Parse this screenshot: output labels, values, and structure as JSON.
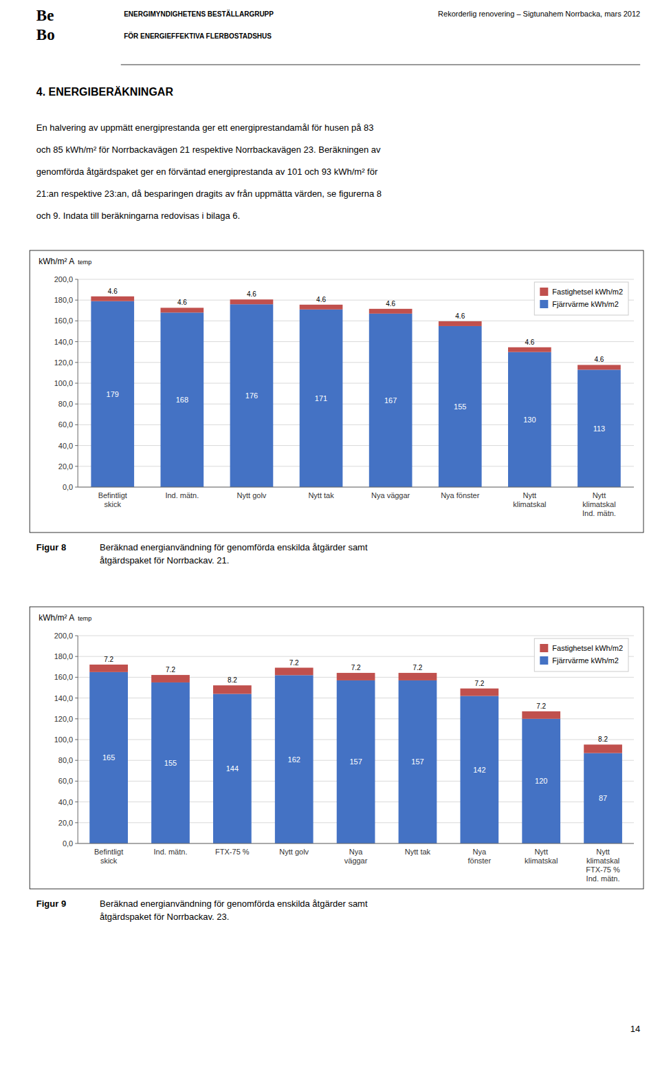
{
  "logo": [
    "Be",
    "Bo"
  ],
  "header_left": [
    "ENERGIMYNDIGHETENS BESTÄLLARGRUPP",
    "FÖR ENERGIEFFEKTIVA FLERBOSTADSHUS"
  ],
  "header_right": "Rekorderlig renovering – Sigtunahem Norrbacka, mars 2012",
  "section_title": "4.   ENERGIBERÄKNINGAR",
  "body_text": [
    "En halvering av uppmätt energiprestanda ger ett energiprestandamål för husen på 83",
    "och 85 kWh/m² för Norrbackavägen 21 respektive Norrbackavägen 23. Beräkningen av",
    "genomförda åtgärdspaket ger en förväntad energiprestanda av 101 och 93 kWh/m² för",
    "21:an respektive 23:an, då besparingen dragits av från uppmätta värden, se figurerna 8",
    "och 9. Indata till beräkningarna redovisas i bilaga 6."
  ],
  "page_number": "14",
  "chart_data": [
    {
      "type": "bar",
      "stacked": true,
      "ylabel": "kWh/m² A",
      "ylabel_note": "temp",
      "categories": [
        "Befintligt\nskick",
        "Ind. mätn.",
        "Nytt golv",
        "Nytt tak",
        "Nya väggar",
        "Nya fönster",
        "Nytt\nklimatskal",
        "Nytt\nklimatskal\nInd. mätn."
      ],
      "series": [
        {
          "name": "Fjärrvärme kWh/m2",
          "color": "#4472C4",
          "values": [
            179,
            168,
            176,
            171,
            167,
            155,
            130,
            113
          ]
        },
        {
          "name": "Fastighetsel kWh/m2",
          "color": "#C0504D",
          "values": [
            4.6,
            4.6,
            4.6,
            4.6,
            4.6,
            4.6,
            4.6,
            4.6
          ]
        }
      ],
      "ylim": [
        0,
        200
      ],
      "yticks": [
        {
          "value": 0,
          "label": "0,0"
        },
        {
          "value": 20,
          "label": "20,0"
        },
        {
          "value": 40,
          "label": "40,0"
        },
        {
          "value": 60,
          "label": "60,0"
        },
        {
          "value": 80,
          "label": "80,0"
        },
        {
          "value": 100,
          "label": "100,0"
        },
        {
          "value": 120,
          "label": "120,0"
        },
        {
          "value": 140,
          "label": "140,0"
        },
        {
          "value": 160,
          "label": "160,0"
        },
        {
          "value": 180,
          "label": "180,0"
        },
        {
          "value": 200,
          "label": "200,0"
        }
      ],
      "grid": true,
      "legend": "upper right",
      "data_labels": true,
      "caption_label": "Figur 8",
      "caption": "Beräknad energianvändning för genomförda enskilda åtgärder samt\nåtgärdspaket för Norrbackav. 21."
    },
    {
      "type": "bar",
      "stacked": true,
      "ylabel": "kWh/m² A",
      "ylabel_note": "temp",
      "categories": [
        "Befintligt\nskick",
        "Ind. mätn.",
        "FTX-75 %",
        "Nytt golv",
        "Nya\nväggar",
        "Nytt tak",
        "Nya\nfönster",
        "Nytt\nklimatskal",
        "Nytt\nklimatskal\nFTX-75 %\nInd. mätn."
      ],
      "series": [
        {
          "name": "Fjärrvärme kWh/m2",
          "color": "#4472C4",
          "values": [
            165,
            155,
            144,
            162,
            157,
            157,
            142,
            120,
            87
          ]
        },
        {
          "name": "Fastighetsel kWh/m2",
          "color": "#C0504D",
          "values": [
            7.2,
            7.2,
            8.2,
            7.2,
            7.2,
            7.2,
            7.2,
            7.2,
            8.2
          ]
        }
      ],
      "ylim": [
        0,
        200
      ],
      "yticks": [
        {
          "value": 0,
          "label": "0,0"
        },
        {
          "value": 20,
          "label": "20,0"
        },
        {
          "value": 40,
          "label": "40,0"
        },
        {
          "value": 60,
          "label": "60,0"
        },
        {
          "value": 80,
          "label": "80,0"
        },
        {
          "value": 100,
          "label": "100,0"
        },
        {
          "value": 120,
          "label": "120,0"
        },
        {
          "value": 140,
          "label": "140,0"
        },
        {
          "value": 160,
          "label": "160,0"
        },
        {
          "value": 180,
          "label": "180,0"
        },
        {
          "value": 200,
          "label": "200,0"
        }
      ],
      "grid": true,
      "legend": "upper right",
      "data_labels": true,
      "caption_label": "Figur 9",
      "caption": "Beräknad energianvändning för genomförda enskilda åtgärder samt\nåtgärdspaket för Norrbackav. 23."
    }
  ]
}
